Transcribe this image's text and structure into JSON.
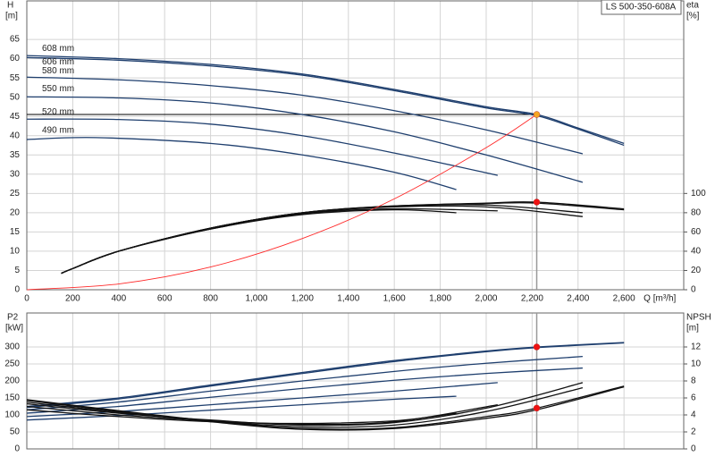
{
  "chart_data": [
    {
      "type": "line",
      "title": "LS 500-350-608A",
      "xlabel": "Q [m³/h]",
      "ylabel": "H",
      "yunit": "[m]",
      "y2label": "eta",
      "y2unit": "[%]",
      "xlim": [
        0,
        2860
      ],
      "ylim": [
        0,
        75
      ],
      "y2lim": [
        0,
        300
      ],
      "xticks": [
        0,
        200,
        400,
        600,
        800,
        {
          "value": 1000,
          "label": "1,000"
        },
        {
          "value": 1200,
          "label": "1,200"
        },
        {
          "value": 1400,
          "label": "1,400"
        },
        {
          "value": 1600,
          "label": "1,600"
        },
        {
          "value": 1800,
          "label": "1,800"
        },
        {
          "value": 2000,
          "label": "2,000"
        },
        {
          "value": 2200,
          "label": "2,200"
        },
        {
          "value": 2400,
          "label": "2,400"
        },
        {
          "value": 2600,
          "label": "2,600"
        }
      ],
      "xtick_labels": true,
      "yticks": [
        0,
        5,
        10,
        15,
        20,
        25,
        30,
        35,
        40,
        45,
        50,
        55,
        60,
        65
      ],
      "y2ticks": [
        0,
        20,
        40,
        60,
        80,
        100
      ],
      "grid": true,
      "duty_lines": true,
      "series": [
        {
          "name": "608 mm",
          "color": "#1f3f6e",
          "x": [
            0,
            400,
            800,
            1200,
            1600,
            2000,
            2220,
            2400,
            2600
          ],
          "values": [
            60.8,
            60,
            58.5,
            56,
            52,
            47.5,
            45.5,
            42,
            38
          ]
        },
        {
          "name": "606 mm",
          "color": "#1f3f6e",
          "x": [
            0,
            400,
            800,
            1200,
            1600,
            2000,
            2220,
            2400,
            2600
          ],
          "values": [
            60.3,
            59.6,
            58.1,
            55.7,
            51.7,
            47.2,
            45.2,
            41.7,
            37.5
          ]
        },
        {
          "name": "580 mm",
          "color": "#1f3f6e",
          "x": [
            0,
            400,
            800,
            1200,
            1600,
            2000,
            2420
          ],
          "values": [
            55.2,
            54.5,
            53,
            50.5,
            46.5,
            41.5,
            35.3
          ]
        },
        {
          "name": "550 mm",
          "color": "#1f3f6e",
          "x": [
            0,
            400,
            800,
            1200,
            1600,
            2000,
            2420
          ],
          "values": [
            50.1,
            49.8,
            48.5,
            45.5,
            41,
            35,
            27.9
          ]
        },
        {
          "name": "520 mm",
          "color": "#1f3f6e",
          "x": [
            0,
            400,
            800,
            1200,
            1600,
            2050
          ],
          "values": [
            44.3,
            44.2,
            43,
            40,
            35.5,
            29.7
          ]
        },
        {
          "name": "490 mm",
          "color": "#1f3f6e",
          "x": [
            0,
            300,
            800,
            1200,
            1600,
            1870
          ],
          "values": [
            39,
            39.5,
            38,
            35,
            30.5,
            26
          ]
        },
        {
          "axis": "y2",
          "color": "#111111",
          "x": [
            150,
            200,
            400,
            800,
            1200,
            1600,
            2000,
            2220,
            2600
          ],
          "values": [
            17,
            22,
            40,
            64,
            80,
            87,
            90,
            91,
            84
          ]
        },
        {
          "axis": "y2",
          "color": "#111111",
          "x": [
            150,
            200,
            400,
            800,
            1200,
            1600,
            2000,
            2220,
            2600
          ],
          "values": [
            17,
            22,
            40,
            64,
            80,
            87,
            89.5,
            90,
            83
          ]
        },
        {
          "axis": "y2",
          "color": "#111111",
          "x": [
            150,
            200,
            400,
            800,
            1200,
            1600,
            2000,
            2420
          ],
          "values": [
            17,
            22,
            40,
            64,
            80,
            86.5,
            88,
            80
          ]
        },
        {
          "axis": "y2",
          "color": "#111111",
          "x": [
            150,
            200,
            400,
            800,
            1200,
            1600,
            2000,
            2420
          ],
          "values": [
            17,
            22,
            40,
            64,
            79.5,
            86,
            86,
            76
          ]
        },
        {
          "axis": "y2",
          "color": "#111111",
          "x": [
            150,
            200,
            400,
            800,
            1200,
            1600,
            2050
          ],
          "values": [
            17,
            22,
            40,
            63,
            79,
            84,
            82
          ]
        },
        {
          "axis": "y2",
          "color": "#111111",
          "x": [
            150,
            200,
            400,
            800,
            1200,
            1600,
            1870
          ],
          "values": [
            17,
            22,
            40,
            63,
            78,
            83,
            80
          ]
        },
        {
          "color": "#ff2a2a",
          "x": [
            0,
            400,
            800,
            1200,
            1600,
            2000,
            2220
          ],
          "values": [
            0,
            1.5,
            5.9,
            13.3,
            23.6,
            36.9,
            45.5
          ]
        }
      ],
      "markers": [
        {
          "color": "#f5a623",
          "x": 2220,
          "value": 45.5
        },
        {
          "color": "#ee1111",
          "axis": "y2",
          "x": 2220,
          "value": 91
        }
      ]
    },
    {
      "type": "line",
      "ylabel": "P2",
      "yunit": "[kW]",
      "y2label": "NPSH",
      "y2unit": "[m]",
      "xlim": [
        0,
        2860
      ],
      "ylim": [
        0,
        400
      ],
      "y2lim": [
        0,
        16
      ],
      "xticks": [
        0,
        200,
        400,
        600,
        800,
        1000,
        1200,
        1400,
        1600,
        1800,
        2000,
        2200,
        2400,
        2600
      ],
      "xtick_labels": false,
      "yticks": [
        0,
        50,
        100,
        150,
        200,
        250,
        300
      ],
      "y2ticks": [
        0,
        2,
        4,
        6,
        8,
        10,
        12
      ],
      "grid": true,
      "duty_lines": true,
      "series": [
        {
          "color": "#1f3f6e",
          "x": [
            0,
            400,
            800,
            1200,
            1600,
            2000,
            2220,
            2600
          ],
          "values": [
            125,
            150,
            188,
            225,
            260,
            288,
            300,
            313
          ]
        },
        {
          "color": "#1f3f6e",
          "x": [
            0,
            400,
            800,
            1200,
            1600,
            2000,
            2220,
            2600
          ],
          "values": [
            122,
            147,
            185,
            222,
            257,
            286,
            298,
            312
          ]
        },
        {
          "color": "#1f3f6e",
          "x": [
            0,
            400,
            800,
            1200,
            1600,
            2000,
            2420
          ],
          "values": [
            115,
            138,
            170,
            200,
            228,
            252,
            272
          ]
        },
        {
          "color": "#1f3f6e",
          "x": [
            0,
            400,
            800,
            1200,
            1600,
            2000,
            2420
          ],
          "values": [
            105,
            125,
            152,
            178,
            202,
            222,
            238
          ]
        },
        {
          "color": "#1f3f6e",
          "x": [
            0,
            400,
            800,
            1200,
            1600,
            2050
          ],
          "values": [
            95,
            110,
            130,
            150,
            170,
            195
          ]
        },
        {
          "color": "#1f3f6e",
          "x": [
            0,
            400,
            800,
            1200,
            1600,
            1870
          ],
          "values": [
            85,
            98,
            114,
            130,
            146,
            155
          ]
        },
        {
          "axis": "y2",
          "color": "#111111",
          "x": [
            0,
            400,
            800,
            1200,
            1600,
            2000,
            2220,
            2600
          ],
          "values": [
            5.8,
            4.5,
            3.3,
            2.4,
            2.5,
            3.8,
            4.8,
            7.4
          ]
        },
        {
          "axis": "y2",
          "color": "#111111",
          "x": [
            0,
            400,
            800,
            1200,
            1600,
            2000,
            2220,
            2600
          ],
          "values": [
            5.7,
            4.4,
            3.2,
            2.3,
            2.4,
            3.6,
            4.6,
            7.3
          ]
        },
        {
          "axis": "y2",
          "color": "#111111",
          "x": [
            0,
            400,
            800,
            1200,
            1600,
            2000,
            2420
          ],
          "values": [
            5.5,
            4.3,
            3.3,
            2.6,
            2.8,
            4.4,
            7.2
          ]
        },
        {
          "axis": "y2",
          "color": "#111111",
          "x": [
            0,
            400,
            800,
            1200,
            1600,
            2000,
            2420
          ],
          "values": [
            5.3,
            4.2,
            3.4,
            2.8,
            3.1,
            4.8,
            7.8
          ]
        },
        {
          "axis": "y2",
          "color": "#111111",
          "x": [
            0,
            400,
            800,
            1200,
            1600,
            2050
          ],
          "values": [
            5,
            4,
            3.3,
            2.9,
            3.2,
            5.2
          ]
        },
        {
          "axis": "y2",
          "color": "#111111",
          "x": [
            0,
            400,
            800,
            1200,
            1600,
            1870
          ],
          "values": [
            4.6,
            3.8,
            3.2,
            3,
            3.3,
            4.2
          ]
        }
      ],
      "markers": [
        {
          "color": "#ee1111",
          "x": 2220,
          "value": 300
        },
        {
          "color": "#ee1111",
          "axis": "y2",
          "x": 2220,
          "value": 4.8
        }
      ]
    }
  ]
}
